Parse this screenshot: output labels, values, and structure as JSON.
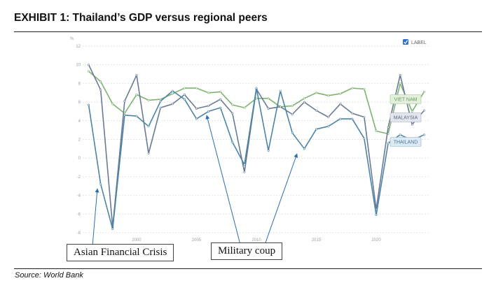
{
  "header": {
    "title": "EXHIBIT 1: Thailand’s GDP versus regional peers"
  },
  "footer": {
    "source": "Source:  World Bank"
  },
  "annotations": [
    {
      "text": "Asian Financial Crisis",
      "points_to": [
        1997,
        -3
      ]
    },
    {
      "text": "Military coup",
      "points_to": [
        [
          2006,
          3.5
        ],
        [
          2014,
          0.5
        ]
      ]
    }
  ],
  "legend": {
    "label": "LABEL",
    "checked": true,
    "placement": "top-right"
  },
  "colors": {
    "viet_nam": "#7db36f",
    "malaysia": "#6a7a96",
    "thailand": "#4a84a8"
  },
  "chart_data": {
    "type": "line",
    "title": "",
    "xlabel": "",
    "ylabel": "%",
    "ylim": [
      -8,
      12
    ],
    "xlim": [
      1995.5,
      2024.5
    ],
    "grid": true,
    "x_ticks": [
      "2000",
      "2005",
      "2010",
      "2015",
      "2020"
    ],
    "y_ticks": [
      "-8",
      "-6",
      "-4",
      "-2",
      "0",
      "2",
      "4",
      "6",
      "8",
      "10",
      "12"
    ],
    "x": [
      1996,
      1997,
      1998,
      1999,
      2000,
      2001,
      2002,
      2003,
      2004,
      2005,
      2006,
      2007,
      2008,
      2009,
      2010,
      2011,
      2012,
      2013,
      2014,
      2015,
      2016,
      2017,
      2018,
      2019,
      2020,
      2021,
      2022,
      2023,
      2024
    ],
    "series": [
      {
        "name": "VIET NAM",
        "values": [
          9.3,
          8.2,
          5.8,
          4.8,
          6.8,
          6.2,
          6.3,
          6.9,
          7.5,
          7.5,
          7.0,
          7.1,
          5.7,
          5.4,
          6.4,
          6.4,
          5.5,
          5.6,
          6.4,
          7.0,
          6.7,
          6.9,
          7.5,
          7.4,
          2.9,
          2.6,
          8.0,
          5.0,
          7.1
        ]
      },
      {
        "name": "MALAYSIA",
        "values": [
          10.0,
          7.3,
          -7.4,
          6.1,
          8.9,
          0.5,
          5.4,
          5.8,
          6.8,
          5.3,
          5.6,
          6.3,
          4.8,
          -1.5,
          7.4,
          5.3,
          5.5,
          4.7,
          6.0,
          5.1,
          4.4,
          5.8,
          4.8,
          4.4,
          -5.5,
          3.3,
          8.9,
          3.6,
          5.1
        ]
      },
      {
        "name": "THAILAND",
        "values": [
          5.7,
          -2.8,
          -7.6,
          4.6,
          4.5,
          3.4,
          6.1,
          7.2,
          6.3,
          4.2,
          5.0,
          5.4,
          1.7,
          -0.7,
          7.5,
          0.8,
          7.2,
          2.7,
          1.0,
          3.1,
          3.4,
          4.2,
          4.2,
          2.1,
          -6.1,
          1.6,
          2.5,
          1.9,
          2.5
        ]
      }
    ]
  }
}
